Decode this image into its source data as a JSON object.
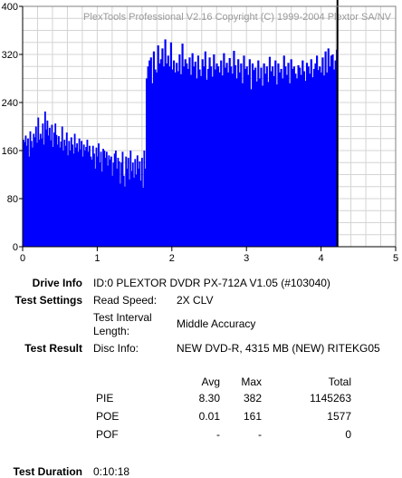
{
  "chart_data": {
    "type": "bar",
    "title": "PlexTools Professional V2.16 Copyright (C) 1999-2004 Plextor SA/NV",
    "xlabel": "",
    "ylabel": "",
    "xlim": [
      0,
      5
    ],
    "ylim": [
      0,
      400
    ],
    "xticks": [
      "0",
      "1",
      "2",
      "3",
      "4",
      "5"
    ],
    "yticks": [
      "0",
      "80",
      "160",
      "240",
      "320",
      "400"
    ],
    "grid": true,
    "bar_color": "#0000ff",
    "marker_color": "#000000",
    "end_marker_x": 4.22,
    "series": [
      {
        "x_start": 0.0,
        "x_end": 1.65,
        "values": [
          178,
          174,
          185,
          168,
          180,
          150,
          192,
          176,
          165,
          188,
          182,
          200,
          173,
          215,
          178,
          188,
          180,
          205,
          170,
          225,
          195,
          210,
          185,
          198,
          177,
          203,
          166,
          190,
          205,
          186,
          170,
          184,
          165,
          175,
          200,
          160,
          178,
          168,
          190,
          152,
          176,
          160,
          182,
          170,
          155,
          188,
          165,
          172,
          158,
          180,
          162,
          176,
          150,
          170,
          160,
          166,
          178,
          158,
          168,
          150,
          145,
          168,
          155,
          130,
          165,
          150,
          172,
          140,
          158,
          125,
          163,
          160,
          148,
          158,
          135,
          152,
          145,
          150,
          118,
          140,
          155,
          160,
          130,
          148,
          142,
          105,
          140,
          158,
          118,
          100,
          150,
          130,
          148,
          112,
          160,
          126,
          140,
          115,
          146,
          120,
          152,
          130,
          142,
          110,
          148,
          98,
          160,
          130
        ]
      },
      {
        "x_start": 1.65,
        "x_end": 4.22,
        "values": [
          280,
          300,
          310,
          315,
          272,
          325,
          295,
          290,
          335,
          305,
          312,
          330,
          300,
          345,
          305,
          318,
          300,
          340,
          295,
          310,
          290,
          306,
          292,
          320,
          287,
          338,
          300,
          312,
          305,
          296,
          315,
          286,
          322,
          300,
          308,
          280,
          318,
          295,
          284,
          312,
          300,
          325,
          278,
          296,
          315,
          300,
          283,
          320,
          295,
          305,
          300,
          290,
          310,
          285,
          322,
          298,
          306,
          290,
          314,
          300,
          288,
          326,
          302,
          280,
          312,
          290,
          305,
          272,
          318,
          296,
          300,
          286,
          312,
          262,
          305,
          294,
          298,
          275,
          310,
          280,
          298,
          268,
          305,
          288,
          300,
          274,
          316,
          292,
          300,
          284,
          310,
          270,
          305,
          290,
          296,
          280,
          318,
          300,
          286,
          306,
          272,
          312,
          296,
          300,
          288,
          280,
          302,
          298,
          286,
          310,
          292,
          276,
          306,
          300,
          288,
          312,
          282,
          296,
          305,
          318,
          294,
          300,
          290,
          315,
          285,
          325,
          290,
          330,
          300,
          318,
          320,
          295,
          310,
          328
        ]
      }
    ]
  },
  "info": {
    "drive_label": "Drive Info",
    "drive_value": "ID:0 PLEXTOR DVDR PX-712A V1.05 (#103040)",
    "settings_label": "Test Settings",
    "read_speed_label": "Read Speed:",
    "read_speed_value": "2X CLV",
    "interval_label_line1": "Test Interval",
    "interval_label_line2": "Length:",
    "interval_value": "Middle Accuracy",
    "result_label": "Test Result",
    "disc_info_label": "Disc Info:",
    "disc_info_value": "NEW DVD-R, 4315 MB (NEW) RITEKG05",
    "duration_label": "Test Duration",
    "duration_value": "0:10:18"
  },
  "results": {
    "headers": {
      "avg": "Avg",
      "max": "Max",
      "total": "Total"
    },
    "rows": [
      {
        "name": "PIE",
        "avg": "8.30",
        "max": "382",
        "total": "1145263"
      },
      {
        "name": "POE",
        "avg": "0.01",
        "max": "161",
        "total": "1577"
      },
      {
        "name": "POF",
        "avg": "-",
        "max": "-",
        "total": "0"
      }
    ]
  }
}
